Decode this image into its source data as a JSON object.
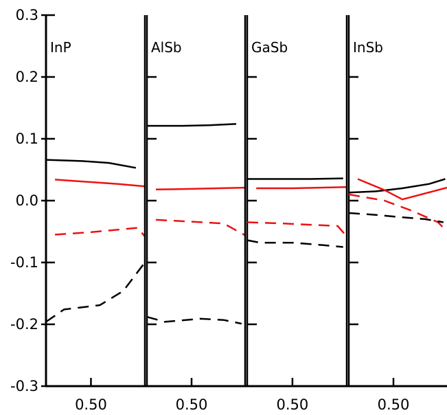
{
  "chart_data": {
    "type": "line",
    "ylim": [
      -0.3,
      0.3
    ],
    "ytick_labels": [
      "0.3",
      "0.2",
      "0.1",
      "0.0",
      "-0.1",
      "-0.2",
      "-0.3"
    ],
    "yticks": [
      0.3,
      0.2,
      0.1,
      0.0,
      -0.1,
      -0.2,
      -0.3
    ],
    "xlim": [
      0.25,
      0.8
    ],
    "xtick_label": "0.50",
    "xtick": 0.5,
    "colors": {
      "black": "#000000",
      "red": "#ee1111"
    },
    "panels": [
      {
        "label": "InP",
        "series": [
          {
            "color": "black",
            "style": "solid",
            "x": [
              0.25,
              0.45,
              0.6,
              0.75
            ],
            "y": [
              0.066,
              0.064,
              0.061,
              0.053
            ]
          },
          {
            "color": "red",
            "style": "solid",
            "x": [
              0.3,
              0.5,
              0.65,
              0.8
            ],
            "y": [
              0.034,
              0.03,
              0.027,
              0.023
            ]
          },
          {
            "color": "red",
            "style": "dashed",
            "x": [
              0.3,
              0.5,
              0.65,
              0.76,
              0.8
            ],
            "y": [
              -0.055,
              -0.051,
              -0.047,
              -0.044,
              -0.058
            ]
          },
          {
            "color": "black",
            "style": "dashed",
            "x": [
              0.25,
              0.35,
              0.55,
              0.68,
              0.8
            ],
            "y": [
              -0.196,
              -0.176,
              -0.169,
              -0.146,
              -0.1
            ]
          }
        ]
      },
      {
        "label": "AlSb",
        "series": [
          {
            "color": "black",
            "style": "solid",
            "x": [
              0.25,
              0.45,
              0.6,
              0.75
            ],
            "y": [
              0.121,
              0.121,
              0.122,
              0.124
            ]
          },
          {
            "color": "red",
            "style": "solid",
            "x": [
              0.3,
              0.5,
              0.65,
              0.8
            ],
            "y": [
              0.018,
              0.019,
              0.02,
              0.021
            ]
          },
          {
            "color": "red",
            "style": "dashed",
            "x": [
              0.3,
              0.5,
              0.68,
              0.8
            ],
            "y": [
              -0.031,
              -0.034,
              -0.037,
              -0.056
            ]
          },
          {
            "color": "black",
            "style": "dashed",
            "x": [
              0.25,
              0.35,
              0.55,
              0.68,
              0.78
            ],
            "y": [
              -0.188,
              -0.196,
              -0.191,
              -0.193,
              -0.199
            ]
          }
        ]
      },
      {
        "label": "GaSb",
        "series": [
          {
            "color": "black",
            "style": "solid",
            "x": [
              0.25,
              0.45,
              0.6,
              0.78
            ],
            "y": [
              0.035,
              0.035,
              0.035,
              0.036
            ]
          },
          {
            "color": "red",
            "style": "solid",
            "x": [
              0.3,
              0.5,
              0.65,
              0.8
            ],
            "y": [
              0.02,
              0.02,
              0.021,
              0.022
            ]
          },
          {
            "color": "red",
            "style": "dashed",
            "x": [
              0.25,
              0.45,
              0.6,
              0.75,
              0.8
            ],
            "y": [
              -0.035,
              -0.037,
              -0.039,
              -0.041,
              -0.058
            ]
          },
          {
            "color": "black",
            "style": "dashed",
            "x": [
              0.25,
              0.32,
              0.5,
              0.67,
              0.78
            ],
            "y": [
              -0.064,
              -0.068,
              -0.068,
              -0.072,
              -0.075
            ]
          }
        ]
      },
      {
        "label": "InSb",
        "series": [
          {
            "color": "black",
            "style": "solid",
            "x": [
              0.25,
              0.4,
              0.55,
              0.7,
              0.79
            ],
            "y": [
              0.013,
              0.015,
              0.02,
              0.027,
              0.035
            ]
          },
          {
            "color": "red",
            "style": "solid",
            "x": [
              0.3,
              0.45,
              0.55,
              0.8
            ],
            "y": [
              0.035,
              0.017,
              0.002,
              0.021
            ]
          },
          {
            "color": "red",
            "style": "dashed",
            "x": [
              0.25,
              0.45,
              0.6,
              0.75,
              0.8
            ],
            "y": [
              0.01,
              0.0,
              -0.016,
              -0.035,
              -0.05
            ]
          },
          {
            "color": "black",
            "style": "dashed",
            "x": [
              0.25,
              0.4,
              0.55,
              0.68,
              0.78
            ],
            "y": [
              -0.02,
              -0.023,
              -0.027,
              -0.03,
              -0.035
            ]
          }
        ]
      }
    ]
  }
}
